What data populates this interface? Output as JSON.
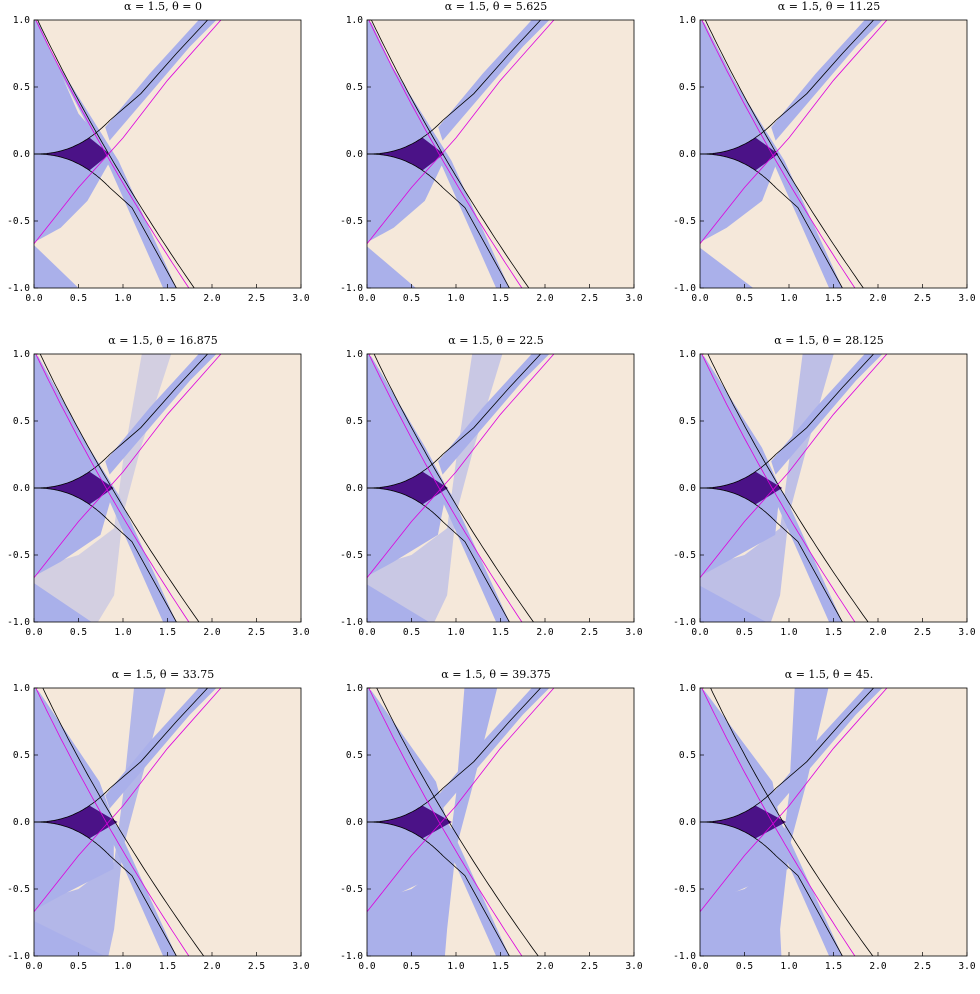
{
  "chart_data": [
    {
      "type": "region",
      "title": "α = 1.5, θ = 0",
      "alpha": 1.5,
      "theta": 0,
      "xlim": [
        0,
        3
      ],
      "ylim": [
        -1,
        1
      ],
      "xticks": [
        "0.0",
        "0.5",
        "1.0",
        "1.5",
        "2.0",
        "2.5",
        "3.0"
      ],
      "yticks": [
        "-1.0",
        "-0.5",
        "0.0",
        "0.5",
        "1.0"
      ]
    },
    {
      "type": "region",
      "title": "α = 1.5, θ = 5.625",
      "alpha": 1.5,
      "theta": 5.625,
      "xlim": [
        0,
        3
      ],
      "ylim": [
        -1,
        1
      ],
      "xticks": [
        "0.0",
        "0.5",
        "1.0",
        "1.5",
        "2.0",
        "2.5",
        "3.0"
      ],
      "yticks": [
        "-1.0",
        "-0.5",
        "0.0",
        "0.5",
        "1.0"
      ]
    },
    {
      "type": "region",
      "title": "α = 1.5, θ = 11.25",
      "alpha": 1.5,
      "theta": 11.25,
      "xlim": [
        0,
        3
      ],
      "ylim": [
        -1,
        1
      ],
      "xticks": [
        "0.0",
        "0.5",
        "1.0",
        "1.5",
        "2.0",
        "2.5",
        "3.0"
      ],
      "yticks": [
        "-1.0",
        "-0.5",
        "0.0",
        "0.5",
        "1.0"
      ]
    },
    {
      "type": "region",
      "title": "α = 1.5, θ = 16.875",
      "alpha": 1.5,
      "theta": 16.875,
      "xlim": [
        0,
        3
      ],
      "ylim": [
        -1,
        1
      ],
      "xticks": [
        "0.0",
        "0.5",
        "1.0",
        "1.5",
        "2.0",
        "2.5",
        "3.0"
      ],
      "yticks": [
        "-1.0",
        "-0.5",
        "0.0",
        "0.5",
        "1.0"
      ]
    },
    {
      "type": "region",
      "title": "α = 1.5, θ = 22.5",
      "alpha": 1.5,
      "theta": 22.5,
      "xlim": [
        0,
        3
      ],
      "ylim": [
        -1,
        1
      ],
      "xticks": [
        "0.0",
        "0.5",
        "1.0",
        "1.5",
        "2.0",
        "2.5",
        "3.0"
      ],
      "yticks": [
        "-1.0",
        "-0.5",
        "0.0",
        "0.5",
        "1.0"
      ]
    },
    {
      "type": "region",
      "title": "α = 1.5, θ = 28.125",
      "alpha": 1.5,
      "theta": 28.125,
      "xlim": [
        0,
        3
      ],
      "ylim": [
        -1,
        1
      ],
      "xticks": [
        "0.0",
        "0.5",
        "1.0",
        "1.5",
        "2.0",
        "2.5",
        "3.0"
      ],
      "yticks": [
        "-1.0",
        "-0.5",
        "0.0",
        "0.5",
        "1.0"
      ]
    },
    {
      "type": "region",
      "title": "α = 1.5, θ = 33.75",
      "alpha": 1.5,
      "theta": 33.75,
      "xlim": [
        0,
        3
      ],
      "ylim": [
        -1,
        1
      ],
      "xticks": [
        "0.0",
        "0.5",
        "1.0",
        "1.5",
        "2.0",
        "2.5",
        "3.0"
      ],
      "yticks": [
        "-1.0",
        "-0.5",
        "0.0",
        "0.5",
        "1.0"
      ]
    },
    {
      "type": "region",
      "title": "α = 1.5, θ = 39.375",
      "alpha": 1.5,
      "theta": 39.375,
      "xlim": [
        0,
        3
      ],
      "ylim": [
        -1,
        1
      ],
      "xticks": [
        "0.0",
        "0.5",
        "1.0",
        "1.5",
        "2.0",
        "2.5",
        "3.0"
      ],
      "yticks": [
        "-1.0",
        "-0.5",
        "0.0",
        "0.5",
        "1.0"
      ]
    },
    {
      "type": "region",
      "title": "α = 1.5, θ = 45.",
      "alpha": 1.5,
      "theta": 45,
      "xlim": [
        0,
        3
      ],
      "ylim": [
        -1,
        1
      ],
      "xticks": [
        "0.0",
        "0.5",
        "1.0",
        "1.5",
        "2.0",
        "2.5",
        "3.0"
      ],
      "yticks": [
        "-1.0",
        "-0.5",
        "0.0",
        "0.5",
        "1.0"
      ]
    }
  ],
  "colors": {
    "background": "#f5e8da",
    "region_light": "#aab0ea",
    "region_dark": "#4b1287",
    "curve_black": "#000000",
    "curve_magenta": "#dd00dd"
  }
}
